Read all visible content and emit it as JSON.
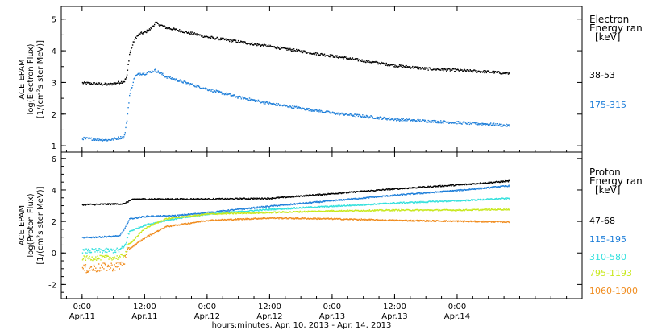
{
  "chart_data": [
    {
      "type": "scatter",
      "panel": "electron",
      "ylabel_lines": [
        "ACE EPAM",
        "log(Electron Flux)",
        "[1/(cm²s ster MeV)]"
      ],
      "ylim": [
        0.8,
        5.4
      ],
      "yticks": [
        "1",
        "2",
        "3",
        "4",
        "5"
      ],
      "ytick_values": [
        1,
        2,
        3,
        4,
        5
      ],
      "legend_title_lines": [
        "Electron",
        "Energy ran",
        "[keV]"
      ],
      "series": [
        {
          "name": "38-53",
          "color": "#000000",
          "points": [
            [
              0,
              3.0
            ],
            [
              5,
              2.95
            ],
            [
              8,
              3.05
            ],
            [
              8.5,
              3.2
            ],
            [
              9,
              3.9
            ],
            [
              10,
              4.4
            ],
            [
              11,
              4.55
            ],
            [
              12,
              4.6
            ],
            [
              13,
              4.7
            ],
            [
              14,
              4.9
            ],
            [
              16,
              4.75
            ],
            [
              20,
              4.6
            ],
            [
              24,
              4.45
            ],
            [
              30,
              4.3
            ],
            [
              36,
              4.15
            ],
            [
              42,
              4.0
            ],
            [
              48,
              3.85
            ],
            [
              54,
              3.7
            ],
            [
              60,
              3.55
            ],
            [
              66,
              3.45
            ],
            [
              72,
              3.4
            ],
            [
              78,
              3.35
            ],
            [
              82,
              3.3
            ]
          ]
        },
        {
          "name": "175-315",
          "color": "#1f7fd9",
          "points": [
            [
              0,
              1.25
            ],
            [
              5,
              1.2
            ],
            [
              8,
              1.3
            ],
            [
              8.5,
              1.8
            ],
            [
              9,
              2.6
            ],
            [
              10,
              3.2
            ],
            [
              11,
              3.3
            ],
            [
              12,
              3.3
            ],
            [
              14,
              3.4
            ],
            [
              16,
              3.2
            ],
            [
              20,
              3.0
            ],
            [
              24,
              2.8
            ],
            [
              30,
              2.55
            ],
            [
              36,
              2.35
            ],
            [
              42,
              2.2
            ],
            [
              48,
              2.05
            ],
            [
              54,
              1.95
            ],
            [
              60,
              1.85
            ],
            [
              66,
              1.8
            ],
            [
              72,
              1.75
            ],
            [
              78,
              1.7
            ],
            [
              82,
              1.65
            ]
          ]
        }
      ]
    },
    {
      "type": "scatter",
      "panel": "proton",
      "ylabel_lines": [
        "ACE EPAM",
        "log(Proton Flux)",
        "[1/(cm²s ster MeV)]"
      ],
      "ylim": [
        -2.9,
        6.4
      ],
      "yticks": [
        "-2",
        "0",
        "2",
        "4",
        "6"
      ],
      "ytick_values": [
        -2,
        0,
        2,
        4,
        6
      ],
      "legend_title_lines": [
        "Proton",
        "Energy ran",
        "[keV]"
      ],
      "series": [
        {
          "name": "47-68",
          "color": "#000000",
          "points": [
            [
              0,
              3.1
            ],
            [
              8,
              3.15
            ],
            [
              9,
              3.35
            ],
            [
              10,
              3.45
            ],
            [
              24,
              3.45
            ],
            [
              36,
              3.5
            ],
            [
              48,
              3.8
            ],
            [
              60,
              4.1
            ],
            [
              72,
              4.35
            ],
            [
              82,
              4.6
            ]
          ]
        },
        {
          "name": "115-195",
          "color": "#1f7fd9",
          "points": [
            [
              0,
              1.0
            ],
            [
              7,
              1.1
            ],
            [
              8,
              1.5
            ],
            [
              9,
              2.2
            ],
            [
              12,
              2.35
            ],
            [
              18,
              2.4
            ],
            [
              24,
              2.6
            ],
            [
              36,
              3.0
            ],
            [
              48,
              3.35
            ],
            [
              60,
              3.7
            ],
            [
              72,
              4.0
            ],
            [
              82,
              4.3
            ]
          ]
        },
        {
          "name": "310-580",
          "color": "#33e0dd",
          "points": [
            [
              0,
              0.15
            ],
            [
              7,
              0.2
            ],
            [
              8,
              0.4
            ],
            [
              9,
              1.4
            ],
            [
              12,
              1.8
            ],
            [
              16,
              2.1
            ],
            [
              24,
              2.5
            ],
            [
              36,
              2.8
            ],
            [
              48,
              3.0
            ],
            [
              60,
              3.2
            ],
            [
              72,
              3.35
            ],
            [
              82,
              3.5
            ]
          ]
        },
        {
          "name": "795-1193",
          "color": "#c8e81c",
          "points": [
            [
              0,
              -0.3
            ],
            [
              7,
              -0.25
            ],
            [
              8,
              -0.1
            ],
            [
              9,
              0.6
            ],
            [
              12,
              1.6
            ],
            [
              16,
              2.2
            ],
            [
              24,
              2.5
            ],
            [
              36,
              2.6
            ],
            [
              48,
              2.7
            ],
            [
              60,
              2.75
            ],
            [
              72,
              2.75
            ],
            [
              82,
              2.8
            ]
          ]
        },
        {
          "name": "1060-1900",
          "color": "#f08c1e",
          "points": [
            [
              0,
              -1.0
            ],
            [
              7,
              -0.8
            ],
            [
              8,
              -0.5
            ],
            [
              9,
              0.3
            ],
            [
              12,
              1.0
            ],
            [
              16,
              1.7
            ],
            [
              24,
              2.1
            ],
            [
              36,
              2.25
            ],
            [
              48,
              2.2
            ],
            [
              60,
              2.1
            ],
            [
              72,
              2.05
            ],
            [
              82,
              2.0
            ]
          ]
        }
      ]
    }
  ],
  "xaxis": {
    "xlim_hours": [
      -4,
      96
    ],
    "ticks": [
      {
        "hour": 0,
        "time": "0:00",
        "day": "Apr.11"
      },
      {
        "hour": 12,
        "time": "12:00",
        "day": "Apr.11"
      },
      {
        "hour": 24,
        "time": "0:00",
        "day": "Apr.12"
      },
      {
        "hour": 36,
        "time": "12:00",
        "day": "Apr.12"
      },
      {
        "hour": 48,
        "time": "0:00",
        "day": "Apr.13"
      },
      {
        "hour": 60,
        "time": "12:00",
        "day": "Apr.13"
      },
      {
        "hour": 72,
        "time": "0:00",
        "day": "Apr.14"
      }
    ],
    "label": "hours:minutes, Apr. 10, 2013 - Apr. 14, 2013"
  }
}
